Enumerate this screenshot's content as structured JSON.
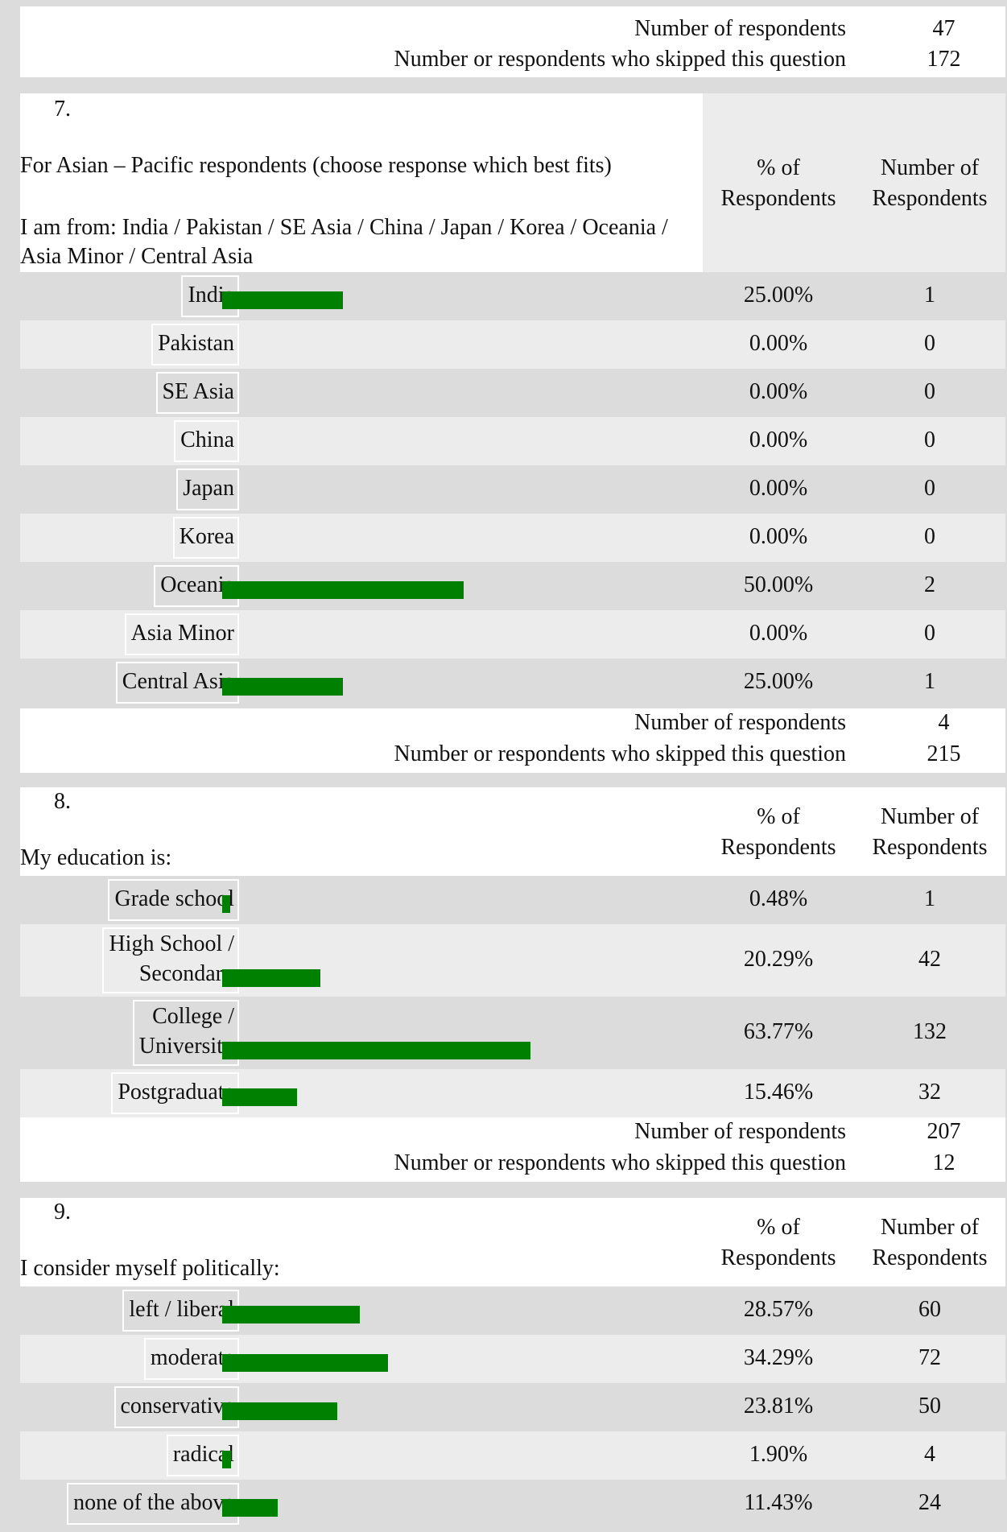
{
  "q6_summary": {
    "label_respondents": "Number of respondents",
    "respondents": "47",
    "label_skipped": "Number or respondents who skipped this question",
    "skipped": "172"
  },
  "q7": {
    "number": "7.",
    "text": "For Asian – Pacific respondents (choose response which best fits)",
    "subtext": "I am from: India / Pakistan / SE Asia  / China / Japan / Korea / Oceania / Asia Minor / Central Asia",
    "col_pct": "% of Respondents",
    "col_num": "Number of Respondents",
    "rows": [
      {
        "label": "India",
        "pct": "25.00%",
        "count": "1",
        "fraction": 0.25
      },
      {
        "label": "Pakistan",
        "pct": "0.00%",
        "count": "0",
        "fraction": 0
      },
      {
        "label": "SE Asia",
        "pct": "0.00%",
        "count": "0",
        "fraction": 0
      },
      {
        "label": "China",
        "pct": "0.00%",
        "count": "0",
        "fraction": 0
      },
      {
        "label": "Japan",
        "pct": "0.00%",
        "count": "0",
        "fraction": 0
      },
      {
        "label": "Korea",
        "pct": "0.00%",
        "count": "0",
        "fraction": 0
      },
      {
        "label": "Oceania",
        "pct": "50.00%",
        "count": "2",
        "fraction": 0.5
      },
      {
        "label": "Asia Minor",
        "pct": "0.00%",
        "count": "0",
        "fraction": 0
      },
      {
        "label": "Central Asia",
        "pct": "25.00%",
        "count": "1",
        "fraction": 0.25
      }
    ],
    "summary": {
      "label_respondents": "Number of respondents",
      "respondents": "4",
      "label_skipped": "Number or respondents who skipped this question",
      "skipped": "215"
    }
  },
  "q8": {
    "number": "8.",
    "text": "My education is:",
    "col_pct": "% of Respondents",
    "col_num": "Number of Respondents",
    "rows": [
      {
        "label": "Grade school",
        "pct": "0.48%",
        "count": "1",
        "fraction": 0.0048
      },
      {
        "label": "High School / Secondary",
        "pct": "20.29%",
        "count": "42",
        "fraction": 0.2029
      },
      {
        "label": "College / University",
        "pct": "63.77%",
        "count": "132",
        "fraction": 0.6377
      },
      {
        "label": "Postgraduate",
        "pct": "15.46%",
        "count": "32",
        "fraction": 0.1546
      }
    ],
    "summary": {
      "label_respondents": "Number of respondents",
      "respondents": "207",
      "label_skipped": "Number or respondents who skipped this question",
      "skipped": "12"
    }
  },
  "q9": {
    "number": "9.",
    "text": "I consider myself politically:",
    "col_pct": "% of Respondents",
    "col_num": "Number of Respondents",
    "rows": [
      {
        "label": "left / liberal",
        "pct": "28.57%",
        "count": "60",
        "fraction": 0.2857
      },
      {
        "label": "moderate",
        "pct": "34.29%",
        "count": "72",
        "fraction": 0.3429
      },
      {
        "label": "conservative",
        "pct": "23.81%",
        "count": "50",
        "fraction": 0.2381
      },
      {
        "label": "radical",
        "pct": "1.90%",
        "count": "4",
        "fraction": 0.019
      },
      {
        "label": "none of the above",
        "pct": "11.43%",
        "count": "24",
        "fraction": 0.1143
      }
    ]
  },
  "colors": {
    "bar": "#008000",
    "row_dark": "#dcdcdc",
    "row_light": "#ececec"
  }
}
